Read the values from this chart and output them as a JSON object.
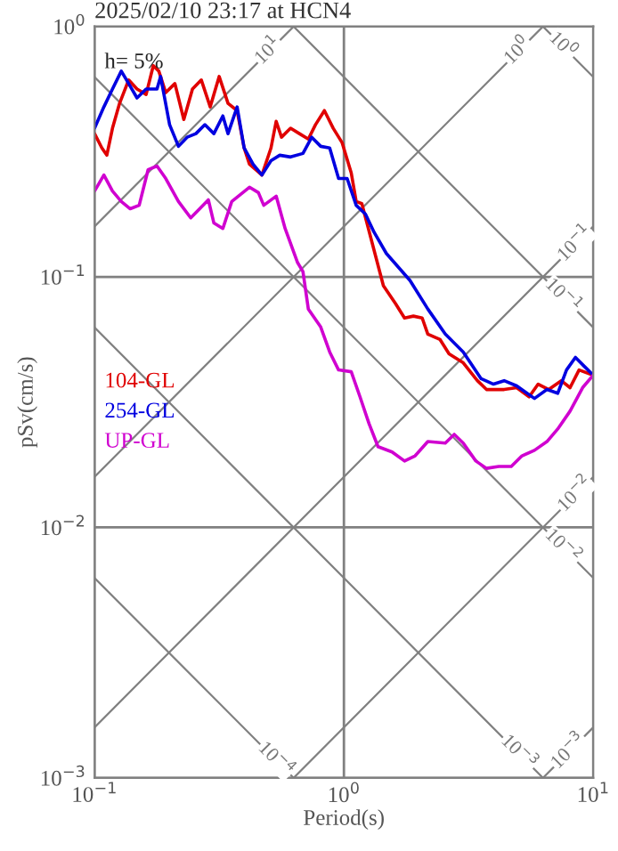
{
  "chart_data": {
    "type": "line",
    "title": "2025/02/10 23:17 at HCN4",
    "xlabel": "Period(s)",
    "ylabel": "pSv(cm/s)",
    "log": "xy",
    "grid": true,
    "legend": "bottom left",
    "xlim": [
      0.1,
      10
    ],
    "ylim": [
      0.001,
      1
    ],
    "xticks": [
      {
        "value": 0.1,
        "label": "10$^{−1}$"
      },
      {
        "value": 1,
        "label": "10$^{0}$"
      },
      {
        "value": 10,
        "label": "10$^{1}$"
      }
    ],
    "yticks": [
      {
        "value": 0.001,
        "label": "10$^{−3}$"
      },
      {
        "value": 0.01,
        "label": "10$^{−2}$"
      },
      {
        "value": 0.1,
        "label": "10$^{−1}$"
      },
      {
        "value": 1,
        "label": "10$^{0}$"
      }
    ],
    "series": [
      {
        "color": "#808080",
        "x": [
          0.1,
          0.629
        ],
        "values": [
          0.159,
          1
        ]
      },
      {
        "color": "#808080",
        "x": [
          0.1,
          6.29
        ],
        "values": [
          0.0159,
          1
        ]
      },
      {
        "color": "#808080",
        "x": [
          0.1,
          10
        ],
        "values": [
          0.00159,
          0.159
        ]
      },
      {
        "color": "#808080",
        "x": [
          0.629,
          10
        ],
        "values": [
          0.001,
          0.0159
        ]
      },
      {
        "color": "#808080",
        "x": [
          6.29,
          10
        ],
        "values": [
          0.001,
          0.00159
        ]
      },
      {
        "color": "#808080",
        "x": [
          6.28,
          10
        ],
        "values": [
          1,
          0.628
        ]
      },
      {
        "color": "#808080",
        "x": [
          0.628,
          10
        ],
        "values": [
          1,
          0.0628
        ]
      },
      {
        "color": "#808080",
        "x": [
          0.1,
          10
        ],
        "values": [
          0.628,
          0.00628
        ]
      },
      {
        "color": "#808080",
        "x": [
          0.1,
          6.28
        ],
        "values": [
          0.0628,
          0.001
        ]
      },
      {
        "color": "#808080",
        "x": [
          0.1,
          0.628
        ],
        "values": [
          0.00628,
          0.001
        ]
      },
      {
        "name": "104-GL",
        "color": "#e00000",
        "x": [
          0.1,
          0.107,
          0.112,
          0.118,
          0.126,
          0.137,
          0.148,
          0.161,
          0.172,
          0.181,
          0.193,
          0.21,
          0.228,
          0.247,
          0.268,
          0.291,
          0.316,
          0.343,
          0.373,
          0.398,
          0.418,
          0.469,
          0.51,
          0.535,
          0.562,
          0.611,
          0.663,
          0.72,
          0.769,
          0.835,
          0.906,
          0.984,
          1.07,
          1.12,
          1.18,
          1.28,
          1.44,
          1.61,
          1.75,
          1.9,
          2.06,
          2.17,
          2.43,
          2.64,
          3.01,
          3.43,
          3.73,
          4.39,
          4.93,
          5.53,
          6.01,
          6.63,
          7.44,
          8.07,
          8.77,
          10
        ],
        "values": [
          0.373,
          0.327,
          0.306,
          0.392,
          0.493,
          0.611,
          0.562,
          0.535,
          0.697,
          0.663,
          0.544,
          0.591,
          0.425,
          0.562,
          0.611,
          0.477,
          0.631,
          0.493,
          0.461,
          0.327,
          0.282,
          0.255,
          0.327,
          0.418,
          0.361,
          0.392,
          0.373,
          0.355,
          0.405,
          0.461,
          0.392,
          0.343,
          0.26,
          0.2,
          0.196,
          0.144,
          0.0921,
          0.0782,
          0.0685,
          0.0697,
          0.0685,
          0.0591,
          0.0562,
          0.0493,
          0.0454,
          0.0385,
          0.0355,
          0.0355,
          0.0361,
          0.0332,
          0.0373,
          0.0355,
          0.0385,
          0.0361,
          0.0425,
          0.0405
        ]
      },
      {
        "name": "254-GL",
        "color": "#0000e0",
        "x": [
          0.1,
          0.109,
          0.118,
          0.128,
          0.137,
          0.148,
          0.161,
          0.178,
          0.184,
          0.2,
          0.217,
          0.235,
          0.255,
          0.277,
          0.301,
          0.327,
          0.343,
          0.373,
          0.398,
          0.432,
          0.469,
          0.51,
          0.553,
          0.611,
          0.685,
          0.743,
          0.807,
          0.877,
          0.952,
          1.03,
          1.12,
          1.22,
          1.32,
          1.48,
          1.84,
          2.17,
          2.55,
          3.01,
          3.55,
          3.98,
          4.39,
          4.93,
          5.81,
          6.52,
          7.2,
          7.81,
          8.48,
          9.21,
          10
        ],
        "values": [
          0.392,
          0.477,
          0.562,
          0.663,
          0.591,
          0.518,
          0.562,
          0.562,
          0.631,
          0.405,
          0.332,
          0.361,
          0.373,
          0.405,
          0.373,
          0.439,
          0.373,
          0.477,
          0.327,
          0.282,
          0.255,
          0.291,
          0.306,
          0.301,
          0.311,
          0.361,
          0.332,
          0.327,
          0.247,
          0.247,
          0.193,
          0.178,
          0.151,
          0.124,
          0.0968,
          0.0744,
          0.0591,
          0.0501,
          0.0392,
          0.0373,
          0.0385,
          0.0367,
          0.0327,
          0.0355,
          0.0343,
          0.0425,
          0.0477,
          0.0439,
          0.0405
        ]
      },
      {
        "name": "UP-GL",
        "color": "#d000d0",
        "x": [
          0.1,
          0.109,
          0.118,
          0.128,
          0.139,
          0.151,
          0.164,
          0.178,
          0.193,
          0.217,
          0.243,
          0.264,
          0.286,
          0.301,
          0.327,
          0.355,
          0.418,
          0.454,
          0.477,
          0.535,
          0.581,
          0.652,
          0.685,
          0.72,
          0.807,
          0.877,
          0.952,
          1.07,
          1.16,
          1.26,
          1.37,
          1.56,
          1.75,
          1.93,
          2.17,
          2.55,
          2.77,
          3.01,
          3.38,
          3.73,
          4.18,
          4.69,
          5.18,
          5.81,
          6.52,
          7.2,
          8.07,
          9.06,
          10
        ],
        "values": [
          0.22,
          0.255,
          0.22,
          0.2,
          0.187,
          0.193,
          0.268,
          0.277,
          0.247,
          0.2,
          0.172,
          0.187,
          0.203,
          0.164,
          0.156,
          0.2,
          0.228,
          0.217,
          0.193,
          0.21,
          0.156,
          0.114,
          0.105,
          0.0744,
          0.0631,
          0.0501,
          0.0425,
          0.0418,
          0.0332,
          0.026,
          0.021,
          0.02,
          0.0184,
          0.0193,
          0.022,
          0.0217,
          0.0235,
          0.0217,
          0.0184,
          0.0172,
          0.0175,
          0.0175,
          0.0193,
          0.0203,
          0.022,
          0.0247,
          0.0291,
          0.0361,
          0.0405
        ]
      }
    ],
    "annotations": [
      "h= 5%",
      {
        "text": "10$^{1}$",
        "x": 0.5,
        "y": 0.795
      },
      {
        "text": "10$^{0}$",
        "x": 5.0,
        "y": 0.795
      },
      {
        "text": "10$^{0}$",
        "x": 7.5,
        "y": 0.837
      },
      {
        "text": "10$^{−1}$",
        "x": 8.5,
        "y": 0.135
      },
      {
        "text": "10$^{−1}$",
        "x": 7.5,
        "y": 0.0837
      },
      {
        "text": "10$^{−2}$",
        "x": 8.5,
        "y": 0.0135
      },
      {
        "text": "10$^{−2}$",
        "x": 7.5,
        "y": 0.00837
      },
      {
        "text": "10$^{−3}$",
        "x": 8.0,
        "y": 0.00127
      },
      {
        "text": "10$^{−3}$",
        "x": 5.0,
        "y": 0.00126
      },
      {
        "text": "10$^{−4}$",
        "x": 0.53,
        "y": 0.00118
      }
    ]
  }
}
